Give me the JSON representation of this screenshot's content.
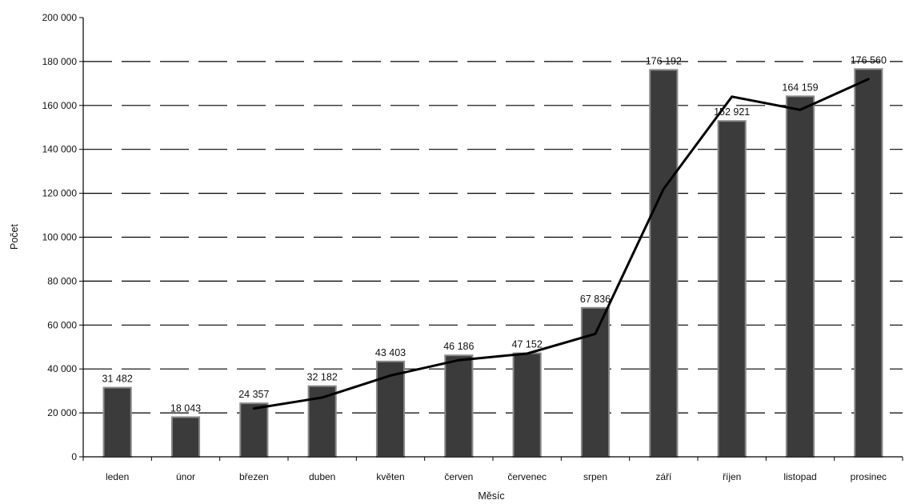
{
  "chart_data": {
    "type": "bar",
    "title": "",
    "xlabel": "Měsíc",
    "ylabel": "Počet",
    "ylim": [
      0,
      200000
    ],
    "yticks": [
      0,
      20000,
      40000,
      60000,
      80000,
      100000,
      120000,
      140000,
      160000,
      180000,
      200000
    ],
    "ytick_labels": [
      "0",
      "20 000",
      "40 000",
      "60 000",
      "80 000",
      "100 000",
      "120 000",
      "140 000",
      "160 000",
      "180 000",
      "200 000"
    ],
    "grid": "horizontal dashed",
    "legend": "none",
    "categories": [
      "leden",
      "únor",
      "březen",
      "duben",
      "květen",
      "červen",
      "červenec",
      "srpen",
      "září",
      "říjen",
      "listopad",
      "prosinec"
    ],
    "series": [
      {
        "type": "bar",
        "values": [
          31482,
          18043,
          24357,
          32182,
          43403,
          46186,
          47152,
          67836,
          176192,
          152921,
          164159,
          176560
        ],
        "labels": [
          "31 482",
          "18 043",
          "24 357",
          "32 182",
          "43 403",
          "46 186",
          "47 152",
          "67 836",
          "176 192",
          "152 921",
          "164 159",
          "176 560"
        ]
      },
      {
        "type": "line",
        "values": [
          null,
          null,
          22000,
          27000,
          37000,
          44000,
          47000,
          56000,
          122000,
          164000,
          158000,
          172000
        ]
      }
    ],
    "colors": {
      "bar_fill": "#3b3b3b",
      "bar_edge": "#888888",
      "line": "#000000",
      "grid": "#000000"
    }
  }
}
